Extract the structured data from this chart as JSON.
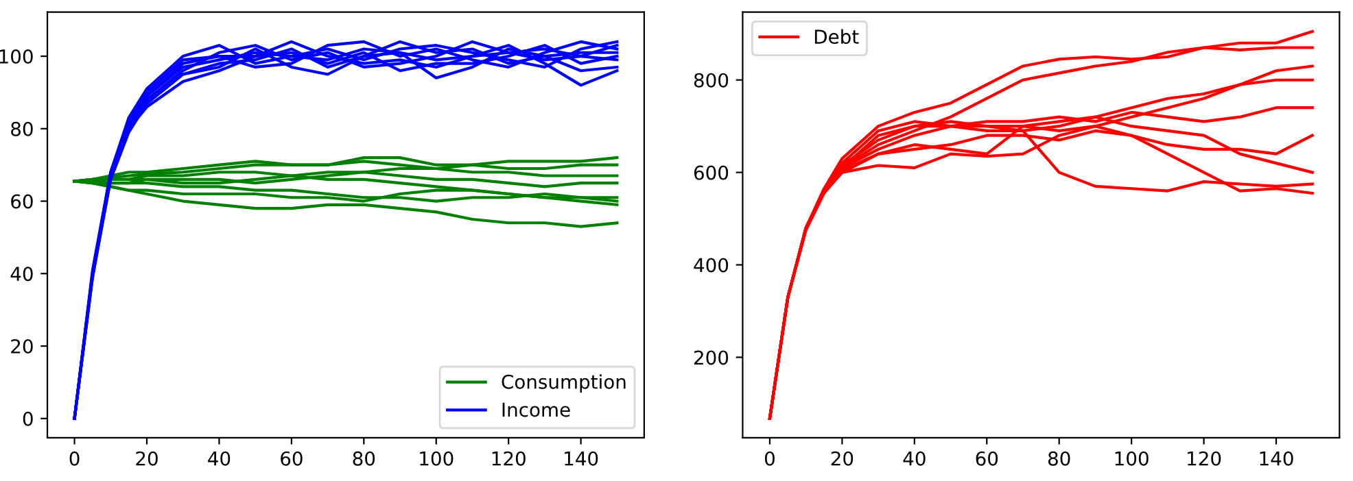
{
  "chart_data": [
    {
      "type": "line",
      "x": [
        0,
        5,
        10,
        15,
        20,
        30,
        40,
        50,
        60,
        70,
        80,
        90,
        100,
        110,
        120,
        130,
        140,
        150
      ],
      "xlim": [
        -7.5,
        157.5
      ],
      "xticks": [
        0,
        20,
        40,
        60,
        80,
        100,
        120,
        140
      ],
      "ylim": [
        -5.3,
        112.2
      ],
      "yticks": [
        0,
        20,
        40,
        60,
        80,
        100
      ],
      "legend": "bottom right",
      "grid": false,
      "series": [
        {
          "name": "Consumption",
          "color": "#008000",
          "values": [
            65.5,
            66,
            66.5,
            67,
            67.5,
            68,
            69,
            70,
            70,
            70,
            71,
            70,
            69,
            70,
            71,
            71,
            71,
            72
          ]
        },
        {
          "color": "#008000",
          "values": [
            65.5,
            65,
            64,
            63,
            62,
            60,
            59,
            58,
            58,
            59,
            59,
            58,
            57,
            55,
            54,
            54,
            53,
            54
          ]
        },
        {
          "color": "#008000",
          "values": [
            65.5,
            66,
            66,
            66,
            67,
            67,
            68,
            68,
            67,
            66,
            66,
            65,
            64,
            63,
            62,
            61,
            60,
            59
          ]
        },
        {
          "color": "#008000",
          "values": [
            65.5,
            65.5,
            65,
            65,
            65,
            64,
            64,
            63,
            63,
            62,
            61,
            61,
            60,
            61,
            61,
            62,
            61,
            60
          ]
        },
        {
          "color": "#008000",
          "values": [
            65.5,
            66,
            67,
            68,
            68,
            69,
            70,
            71,
            70,
            70,
            72,
            72,
            70,
            70,
            69,
            69,
            70,
            70
          ]
        },
        {
          "color": "#008000",
          "values": [
            65.5,
            65,
            65,
            65,
            66,
            66,
            66,
            65,
            66,
            67,
            68,
            67,
            66,
            66,
            65,
            64,
            65,
            65
          ]
        },
        {
          "color": "#008000",
          "values": [
            65.5,
            65.5,
            66,
            66,
            66,
            65,
            65,
            66,
            67,
            68,
            68,
            69,
            69,
            68,
            68,
            67,
            67,
            67
          ]
        },
        {
          "color": "#008000",
          "values": [
            65.5,
            65,
            64,
            63,
            63,
            62,
            62,
            62,
            61,
            61,
            60,
            62,
            63,
            63,
            62,
            61,
            61,
            61
          ]
        },
        {
          "name": "Income",
          "color": "#0000ff",
          "values": [
            0,
            40,
            67,
            81,
            89,
            97,
            99,
            101,
            100,
            99,
            102,
            101,
            99,
            100,
            101,
            99,
            100,
            103
          ]
        },
        {
          "color": "#0000ff",
          "values": [
            0,
            39,
            66,
            79,
            87,
            95,
            98,
            99,
            102,
            97,
            100,
            104,
            101,
            102,
            98,
            100,
            101,
            101
          ]
        },
        {
          "color": "#0000ff",
          "values": [
            0,
            40,
            67,
            80,
            86,
            93,
            96,
            100,
            104,
            100,
            98,
            99,
            97,
            100,
            103,
            98,
            92,
            96
          ]
        },
        {
          "color": "#0000ff",
          "values": [
            0,
            41,
            68,
            82,
            90,
            99,
            100,
            97,
            98,
            103,
            104,
            100,
            102,
            99,
            97,
            101,
            104,
            102
          ]
        },
        {
          "color": "#0000ff",
          "values": [
            0,
            40,
            66,
            80,
            88,
            96,
            101,
            103,
            99,
            101,
            97,
            98,
            100,
            104,
            101,
            102,
            100,
            99
          ]
        },
        {
          "color": "#0000ff",
          "values": [
            0,
            39,
            67,
            81,
            89,
            98,
            100,
            100,
            101,
            98,
            101,
            96,
            98,
            98,
            100,
            103,
            98,
            100
          ]
        },
        {
          "color": "#0000ff",
          "values": [
            0,
            40,
            68,
            83,
            91,
            100,
            103,
            98,
            100,
            102,
            99,
            102,
            103,
            101,
            99,
            97,
            102,
            104
          ]
        },
        {
          "color": "#0000ff",
          "values": [
            0,
            40,
            67,
            80,
            87,
            95,
            97,
            102,
            97,
            95,
            100,
            101,
            94,
            97,
            102,
            100,
            96,
            97
          ]
        }
      ]
    },
    {
      "type": "line",
      "x": [
        0,
        5,
        10,
        15,
        20,
        30,
        40,
        50,
        60,
        70,
        80,
        90,
        100,
        110,
        120,
        130,
        140,
        150
      ],
      "xlim": [
        -7.5,
        157.5
      ],
      "xticks": [
        0,
        20,
        40,
        60,
        80,
        100,
        120,
        140
      ],
      "ylim": [
        26,
        947
      ],
      "yticks": [
        200,
        400,
        600,
        800
      ],
      "legend": "top left",
      "grid": false,
      "series": [
        {
          "name": "Debt",
          "color": "#ff0000",
          "values": [
            68,
            330,
            480,
            565,
            630,
            700,
            730,
            750,
            790,
            830,
            845,
            850,
            845,
            850,
            870,
            880,
            880,
            905
          ]
        },
        {
          "color": "#ff0000",
          "values": [
            68,
            330,
            480,
            560,
            610,
            660,
            690,
            720,
            760,
            800,
            815,
            830,
            840,
            860,
            870,
            865,
            870,
            870
          ]
        },
        {
          "color": "#ff0000",
          "values": [
            68,
            330,
            475,
            555,
            600,
            615,
            610,
            640,
            635,
            640,
            680,
            700,
            720,
            740,
            760,
            790,
            820,
            830
          ]
        },
        {
          "color": "#ff0000",
          "values": [
            68,
            330,
            478,
            558,
            610,
            650,
            680,
            700,
            700,
            690,
            600,
            570,
            565,
            560,
            580,
            575,
            570,
            575
          ]
        },
        {
          "color": "#ff0000",
          "values": [
            68,
            330,
            480,
            560,
            605,
            640,
            660,
            650,
            640,
            700,
            710,
            720,
            700,
            690,
            680,
            640,
            620,
            600
          ]
        },
        {
          "color": "#ff0000",
          "values": [
            68,
            330,
            480,
            560,
            615,
            670,
            700,
            710,
            700,
            700,
            690,
            700,
            680,
            640,
            600,
            560,
            565,
            555
          ]
        },
        {
          "color": "#ff0000",
          "values": [
            68,
            330,
            480,
            562,
            620,
            690,
            710,
            700,
            690,
            690,
            700,
            720,
            740,
            760,
            770,
            790,
            800,
            800
          ]
        },
        {
          "color": "#ff0000",
          "values": [
            68,
            330,
            479,
            560,
            610,
            680,
            700,
            700,
            710,
            710,
            720,
            710,
            730,
            720,
            710,
            720,
            740,
            740
          ]
        },
        {
          "color": "#ff0000",
          "values": [
            68,
            330,
            480,
            560,
            600,
            640,
            650,
            660,
            680,
            680,
            670,
            690,
            680,
            660,
            650,
            650,
            640,
            680
          ]
        }
      ]
    }
  ]
}
